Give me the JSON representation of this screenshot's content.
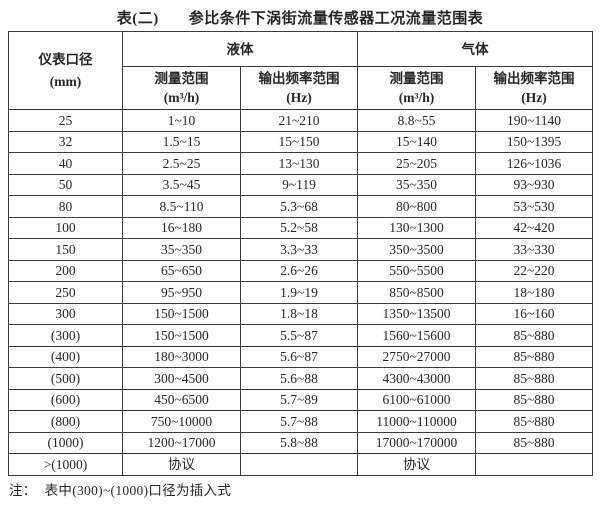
{
  "title": {
    "label": "表(二)",
    "text": "参比条件下涡街流量传感器工况流量范围表"
  },
  "table": {
    "diameter_header": {
      "line1": "仪表口径",
      "line2": "(mm)"
    },
    "groups": [
      {
        "label": "液体"
      },
      {
        "label": "气体"
      }
    ],
    "sub_headers": [
      {
        "line1": "测量范围",
        "line2": "(m³/h)"
      },
      {
        "line1": "输出频率范围",
        "line2": "(Hz)"
      },
      {
        "line1": "测量范围",
        "line2": "(m³/h)"
      },
      {
        "line1": "输出频率范围",
        "line2": "(Hz)"
      }
    ],
    "rows": [
      {
        "diameter": "25",
        "cells": [
          "1~10",
          "21~210",
          "8.8~55",
          "190~1140"
        ]
      },
      {
        "diameter": "32",
        "cells": [
          "1.5~15",
          "15~150",
          "15~140",
          "150~1395"
        ]
      },
      {
        "diameter": "40",
        "cells": [
          "2.5~25",
          "13~130",
          "25~205",
          "126~1036"
        ]
      },
      {
        "diameter": "50",
        "cells": [
          "3.5~45",
          "9~119",
          "35~350",
          "93~930"
        ]
      },
      {
        "diameter": "80",
        "cells": [
          "8.5~110",
          "5.3~68",
          "80~800",
          "53~530"
        ]
      },
      {
        "diameter": "100",
        "cells": [
          "16~180",
          "5.2~58",
          "130~1300",
          "42~420"
        ]
      },
      {
        "diameter": "150",
        "cells": [
          "35~350",
          "3.3~33",
          "350~3500",
          "33~330"
        ]
      },
      {
        "diameter": "200",
        "cells": [
          "65~650",
          "2.6~26",
          "550~5500",
          "22~220"
        ]
      },
      {
        "diameter": "250",
        "cells": [
          "95~950",
          "1.9~19",
          "850~8500",
          "18~180"
        ]
      },
      {
        "diameter": "300",
        "cells": [
          "150~1500",
          "1.8~18",
          "1350~13500",
          "16~160"
        ]
      },
      {
        "diameter": "(300)",
        "cells": [
          "150~1500",
          "5.5~87",
          "1560~15600",
          "85~880"
        ]
      },
      {
        "diameter": "(400)",
        "cells": [
          "180~3000",
          "5.6~87",
          "2750~27000",
          "85~880"
        ]
      },
      {
        "diameter": "(500)",
        "cells": [
          "300~4500",
          "5.6~88",
          "4300~43000",
          "85~880"
        ]
      },
      {
        "diameter": "(600)",
        "cells": [
          "450~6500",
          "5.7~89",
          "6100~61000",
          "85~880"
        ]
      },
      {
        "diameter": "(800)",
        "cells": [
          "750~10000",
          "5.7~88",
          "11000~110000",
          "85~880"
        ]
      },
      {
        "diameter": "(1000)",
        "cells": [
          "1200~17000",
          "5.8~88",
          "17000~170000",
          "85~880"
        ]
      },
      {
        "diameter": ">(1000)",
        "cells": [
          "协议",
          "",
          "协议",
          ""
        ]
      }
    ]
  },
  "note": {
    "prefix": "注：",
    "text": "表中(300)~(1000)口径为插入式"
  },
  "colors": {
    "border": "#3c3c3c",
    "text": "#262626",
    "background": "#ffffff"
  }
}
